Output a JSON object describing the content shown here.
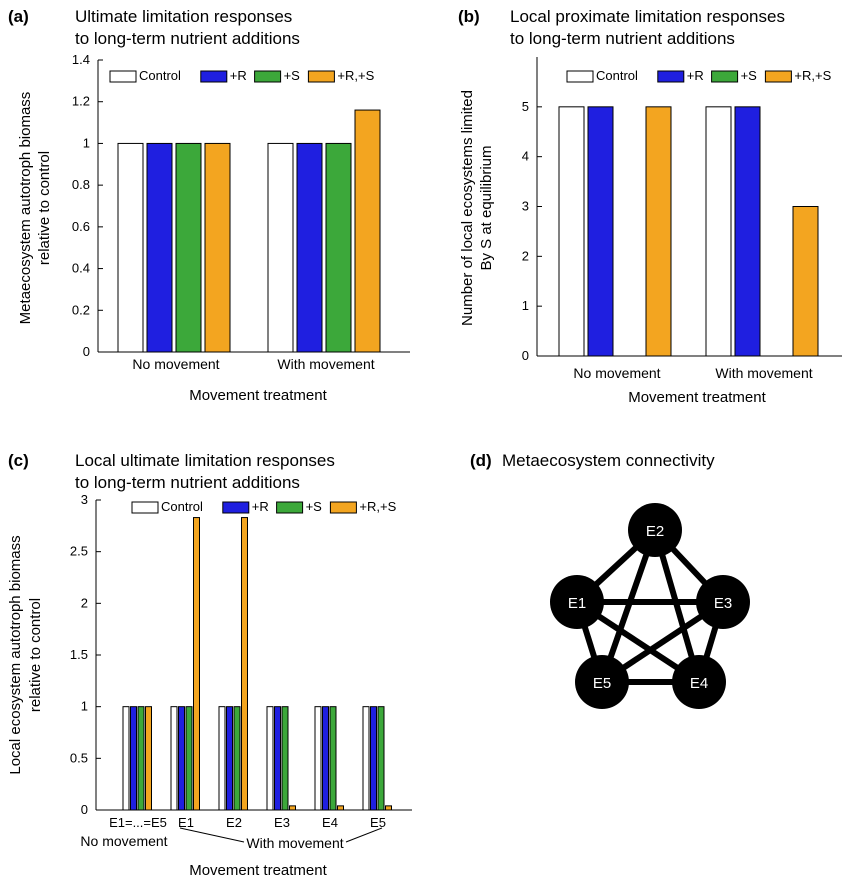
{
  "colors": {
    "Control": "#ffffff",
    "+R": "#1f1fe0",
    "+S": "#3ca83a",
    "+R,+S": "#f3a520",
    "edge": "#000000",
    "node": "#000000"
  },
  "chart_data": [
    {
      "panel": "(a)",
      "type": "bar",
      "title": [
        "Ultimate limitation responses",
        "to long-term nutrient additions"
      ],
      "xlabel": "Movement treatment",
      "ylabel": [
        "Metaecosystem autotroph biomass",
        "relative to control"
      ],
      "ylim": [
        0,
        1.4
      ],
      "yticks": [
        0,
        0.2,
        0.4,
        0.6,
        0.8,
        1,
        1.2,
        1.4
      ],
      "categories": [
        "No movement",
        "With movement"
      ],
      "series": [
        {
          "name": "Control",
          "values": [
            1,
            1
          ]
        },
        {
          "name": "+R",
          "values": [
            1,
            1
          ]
        },
        {
          "name": "+S",
          "values": [
            1,
            1
          ]
        },
        {
          "name": "+R,+S",
          "values": [
            1,
            1.16
          ]
        }
      ],
      "legend": "top"
    },
    {
      "panel": "(b)",
      "type": "bar",
      "title": [
        "Local proximate limitation responses",
        "to long-term nutrient additions"
      ],
      "xlabel": "Movement treatment",
      "ylabel": [
        "Number of local ecosystems limited",
        "By S at equilibrium"
      ],
      "ylim": [
        0,
        6
      ],
      "yticks": [
        0,
        1,
        2,
        3,
        4,
        5
      ],
      "categories": [
        "No movement",
        "With movement"
      ],
      "series": [
        {
          "name": "Control",
          "values": [
            5,
            5
          ]
        },
        {
          "name": "+R",
          "values": [
            5,
            5
          ]
        },
        {
          "name": "+S",
          "values": [
            0,
            0
          ]
        },
        {
          "name": "+R,+S",
          "values": [
            5,
            3
          ]
        }
      ],
      "legend": "top"
    },
    {
      "panel": "(c)",
      "type": "bar",
      "title": [
        "Local ultimate limitation responses",
        "to long-term nutrient additions"
      ],
      "xlabel": "Movement treatment",
      "ylabel": [
        "Local ecosystem autotroph biomass",
        "relative to control"
      ],
      "ylim": [
        0,
        3
      ],
      "yticks": [
        0,
        0.5,
        1,
        1.5,
        2,
        2.5,
        3
      ],
      "categories": [
        "E1=...=E5",
        "E1",
        "E2",
        "E3",
        "E4",
        "E5"
      ],
      "group_labels": {
        "no_movement": "No movement",
        "with_movement": "With movement"
      },
      "series": [
        {
          "name": "Control",
          "values": [
            1,
            1,
            1,
            1,
            1,
            1
          ]
        },
        {
          "name": "+R",
          "values": [
            1,
            1,
            1,
            1,
            1,
            1
          ]
        },
        {
          "name": "+S",
          "values": [
            1,
            1,
            1,
            1,
            1,
            1
          ]
        },
        {
          "name": "+R,+S",
          "values": [
            1,
            2.83,
            2.83,
            0.04,
            0.04,
            0.04
          ]
        }
      ],
      "legend": "top"
    }
  ],
  "diagram": {
    "panel": "(d)",
    "title": "Metaecosystem connectivity",
    "nodes": [
      "E2",
      "E1",
      "E3",
      "E5",
      "E4"
    ],
    "edges": [
      [
        "E1",
        "E2"
      ],
      [
        "E1",
        "E3"
      ],
      [
        "E1",
        "E4"
      ],
      [
        "E1",
        "E5"
      ],
      [
        "E2",
        "E3"
      ],
      [
        "E2",
        "E4"
      ],
      [
        "E2",
        "E5"
      ],
      [
        "E3",
        "E4"
      ],
      [
        "E3",
        "E5"
      ],
      [
        "E4",
        "E5"
      ]
    ]
  }
}
